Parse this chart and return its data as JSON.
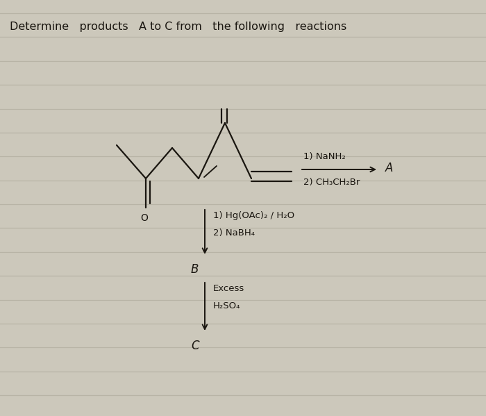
{
  "title": "Determine   products   A to C from   the following   reactions",
  "title_fontsize": 11.5,
  "bg_color": "#ccc8bb",
  "line_color": "#b8b4a6",
  "text_color": "#1a1610",
  "num_lines": 17,
  "reaction1_label": "1) NaNH₂",
  "reaction1_label2": "2) CH₃CH₂Br",
  "reaction1_product": "A",
  "reaction2_label": "1) Hg(OAc)₂ / H₂O",
  "reaction2_label2": "2) NaBH₄",
  "reaction2_product": "B",
  "reaction3_label": "Excess",
  "reaction3_label2": "H₂SO₄",
  "reaction3_product": "C",
  "mol_lw": 1.6,
  "arrow_lw": 1.4
}
